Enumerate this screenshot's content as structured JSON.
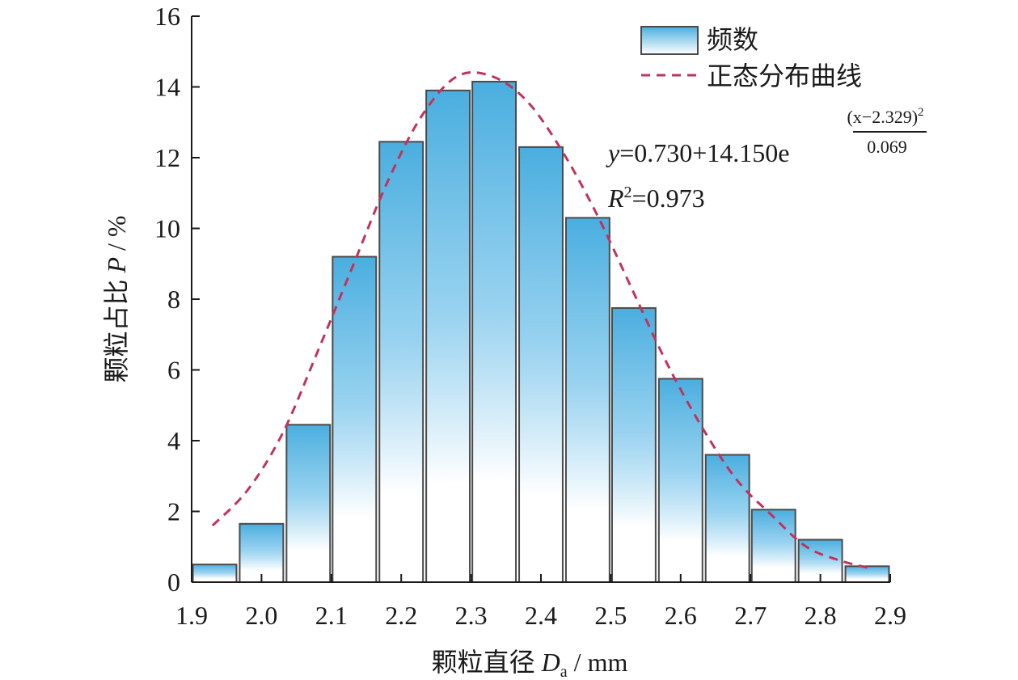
{
  "chart_data": {
    "type": "bar",
    "xlabel": "颗粒直径",
    "xlabel_symbol": "D",
    "xlabel_sub": "a",
    "xlabel_unit": " / mm",
    "ylabel": "颗粒占比",
    "ylabel_symbol": "P",
    "ylabel_unit": " / %",
    "xlim": [
      1.9,
      2.9
    ],
    "ylim": [
      0,
      16
    ],
    "x_ticks": [
      "1.9",
      "2.0",
      "2.1",
      "2.2",
      "2.3",
      "2.4",
      "2.5",
      "2.6",
      "2.7",
      "2.8",
      "2.9"
    ],
    "y_ticks": [
      "0",
      "2",
      "4",
      "6",
      "8",
      "10",
      "12",
      "14",
      "16"
    ],
    "bin_width": 0.067,
    "series": [
      {
        "name": "频数",
        "type": "bar",
        "x": [
          1.933,
          2.0,
          2.067,
          2.133,
          2.2,
          2.267,
          2.333,
          2.4,
          2.467,
          2.533,
          2.6,
          2.667,
          2.733,
          2.8,
          2.867
        ],
        "values": [
          0.5,
          1.65,
          4.45,
          9.2,
          12.45,
          13.9,
          14.15,
          12.3,
          10.3,
          7.75,
          5.75,
          3.6,
          2.05,
          1.2,
          0.45
        ],
        "color": "#4aaedf"
      },
      {
        "name": "正态分布曲线",
        "type": "line",
        "style": "dashed",
        "color": "#c0335a",
        "x": [
          1.93,
          1.98,
          2.03,
          2.08,
          2.13,
          2.18,
          2.23,
          2.28,
          2.33,
          2.38,
          2.43,
          2.48,
          2.53,
          2.58,
          2.63,
          2.68,
          2.73,
          2.78,
          2.83,
          2.87
        ],
        "values": [
          1.6,
          2.6,
          4.2,
          6.5,
          8.9,
          11.3,
          13.2,
          14.3,
          14.3,
          13.6,
          12.2,
          10.4,
          8.3,
          6.2,
          4.4,
          2.9,
          1.9,
          1.0,
          0.6,
          0.4
        ]
      }
    ],
    "annotations": {
      "eq_y": "y",
      "eq_body": "=0.730+14.150e",
      "eq_num": "(x−2.329)",
      "eq_num_sup": "2",
      "eq_den": "0.069",
      "r2_R": "R",
      "r2_sup": "2",
      "r2_val": "=0.973"
    },
    "legend_position": "top-right",
    "grid": false
  }
}
